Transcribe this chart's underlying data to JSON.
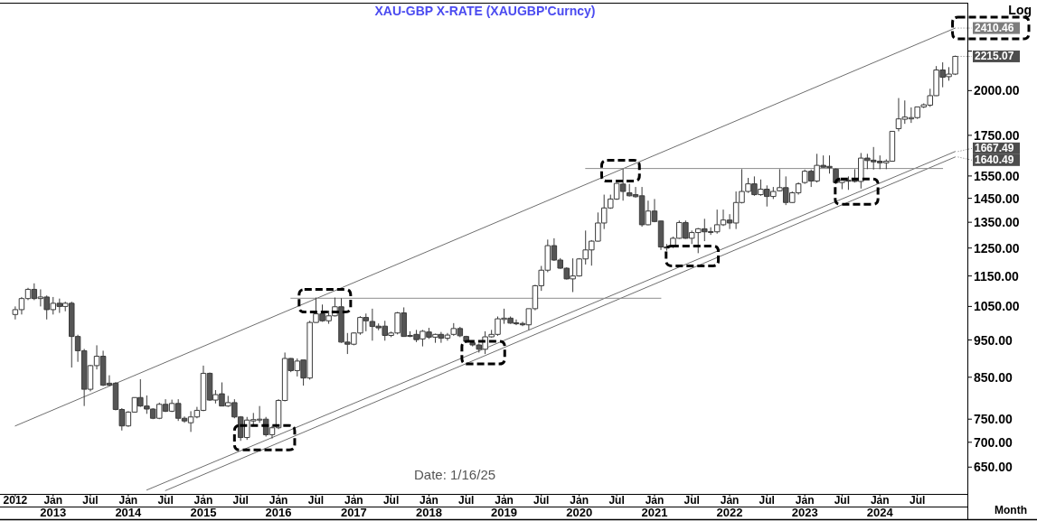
{
  "chart_data": {
    "type": "candlestick",
    "title": "XAU-GBP X-RATE (XAUGBP'Curncy)",
    "x": [
      "2012-07",
      "2012-08",
      "2012-09",
      "2012-10",
      "2012-11",
      "2012-12",
      "2013-01",
      "2013-02",
      "2013-03",
      "2013-04",
      "2013-05",
      "2013-06",
      "2013-07",
      "2013-08",
      "2013-09",
      "2013-10",
      "2013-11",
      "2013-12",
      "2014-01",
      "2014-02",
      "2014-03",
      "2014-04",
      "2014-05",
      "2014-06",
      "2014-07",
      "2014-08",
      "2014-09",
      "2014-10",
      "2014-11",
      "2014-12",
      "2015-01",
      "2015-02",
      "2015-03",
      "2015-04",
      "2015-05",
      "2015-06",
      "2015-07",
      "2015-08",
      "2015-09",
      "2015-10",
      "2015-11",
      "2015-12",
      "2016-01",
      "2016-02",
      "2016-03",
      "2016-04",
      "2016-05",
      "2016-06",
      "2016-07",
      "2016-08",
      "2016-09",
      "2016-10",
      "2016-11",
      "2016-12",
      "2017-01",
      "2017-02",
      "2017-03",
      "2017-04",
      "2017-05",
      "2017-06",
      "2017-07",
      "2017-08",
      "2017-09",
      "2017-10",
      "2017-11",
      "2017-12",
      "2018-01",
      "2018-02",
      "2018-03",
      "2018-04",
      "2018-05",
      "2018-06",
      "2018-07",
      "2018-08",
      "2018-09",
      "2018-10",
      "2018-11",
      "2018-12",
      "2019-01",
      "2019-02",
      "2019-03",
      "2019-04",
      "2019-05",
      "2019-06",
      "2019-07",
      "2019-08",
      "2019-09",
      "2019-10",
      "2019-11",
      "2019-12",
      "2020-01",
      "2020-02",
      "2020-03",
      "2020-04",
      "2020-05",
      "2020-06",
      "2020-07",
      "2020-08",
      "2020-09",
      "2020-10",
      "2020-11",
      "2020-12",
      "2021-01",
      "2021-02",
      "2021-03",
      "2021-04",
      "2021-05",
      "2021-06",
      "2021-07",
      "2021-08",
      "2021-09",
      "2021-10",
      "2021-11",
      "2021-12",
      "2022-01",
      "2022-02",
      "2022-03",
      "2022-04",
      "2022-05",
      "2022-06",
      "2022-07",
      "2022-08",
      "2022-09",
      "2022-10",
      "2022-11",
      "2022-12",
      "2023-01",
      "2023-02",
      "2023-03",
      "2023-04",
      "2023-05",
      "2023-06",
      "2023-07",
      "2023-08",
      "2023-09",
      "2023-10",
      "2023-11",
      "2023-12",
      "2024-01",
      "2024-02",
      "2024-03",
      "2024-04",
      "2024-05",
      "2024-06",
      "2024-07",
      "2024-08",
      "2024-09",
      "2024-10",
      "2024-11",
      "2024-12",
      "2025-01"
    ],
    "ohlc": [
      [
        1025,
        1050,
        1010,
        1040
      ],
      [
        1040,
        1080,
        1025,
        1075
      ],
      [
        1075,
        1110,
        1070,
        1105
      ],
      [
        1105,
        1125,
        1070,
        1075
      ],
      [
        1075,
        1105,
        1050,
        1080
      ],
      [
        1080,
        1085,
        1010,
        1040
      ],
      [
        1040,
        1080,
        1025,
        1060
      ],
      [
        1060,
        1075,
        1030,
        1050
      ],
      [
        1050,
        1065,
        1035,
        1060
      ],
      [
        1060,
        1065,
        875,
        960
      ],
      [
        960,
        965,
        890,
        920
      ],
      [
        920,
        925,
        780,
        820
      ],
      [
        820,
        882,
        815,
        880
      ],
      [
        880,
        935,
        870,
        905
      ],
      [
        905,
        920,
        828,
        830
      ],
      [
        835,
        855,
        828,
        830
      ],
      [
        835,
        838,
        770,
        772
      ],
      [
        772,
        775,
        725,
        735
      ],
      [
        735,
        768,
        733,
        766
      ],
      [
        766,
        800,
        765,
        800
      ],
      [
        800,
        845,
        778,
        780
      ],
      [
        780,
        805,
        762,
        773
      ],
      [
        773,
        775,
        750,
        752
      ],
      [
        752,
        788,
        750,
        784
      ],
      [
        784,
        796,
        766,
        768
      ],
      [
        768,
        795,
        766,
        786
      ],
      [
        786,
        796,
        746,
        752
      ],
      [
        752,
        756,
        742,
        746
      ],
      [
        742,
        768,
        722,
        755
      ],
      [
        755,
        778,
        752,
        770
      ],
      [
        770,
        880,
        768,
        860
      ],
      [
        860,
        862,
        792,
        794
      ],
      [
        794,
        818,
        786,
        807
      ],
      [
        809,
        837,
        780,
        780
      ],
      [
        780,
        804,
        778,
        788
      ],
      [
        788,
        796,
        752,
        755
      ],
      [
        755,
        757,
        703,
        710
      ],
      [
        710,
        755,
        705,
        748
      ],
      [
        746,
        764,
        738,
        749
      ],
      [
        748,
        780,
        742,
        750
      ],
      [
        750,
        755,
        712,
        716
      ],
      [
        716,
        735,
        708,
        731
      ],
      [
        731,
        796,
        728,
        793
      ],
      [
        793,
        915,
        791,
        899
      ],
      [
        899,
        900,
        863,
        867
      ],
      [
        867,
        899,
        852,
        892
      ],
      [
        895,
        895,
        829,
        848
      ],
      [
        848,
        1006,
        844,
        1001
      ],
      [
        1001,
        1078,
        1000,
        1027
      ],
      [
        1027,
        1056,
        1003,
        1006
      ],
      [
        1006,
        1037,
        997,
        1021
      ],
      [
        1021,
        1078,
        1019,
        1049
      ],
      [
        1049,
        1076,
        942,
        944
      ],
      [
        944,
        970,
        911,
        938
      ],
      [
        938,
        972,
        935,
        970
      ],
      [
        970,
        1020,
        965,
        1016
      ],
      [
        1016,
        1028,
        975,
        1006
      ],
      [
        1004,
        1043,
        948,
        989
      ],
      [
        990,
        998,
        978,
        985
      ],
      [
        990,
        1006,
        948,
        963
      ],
      [
        963,
        974,
        958,
        970
      ],
      [
        970,
        1033,
        966,
        1030
      ],
      [
        1030,
        1047,
        959,
        960
      ],
      [
        963,
        975,
        958,
        962
      ],
      [
        966,
        979,
        944,
        951
      ],
      [
        953,
        979,
        932,
        975
      ],
      [
        973,
        985,
        953,
        958
      ],
      [
        958,
        968,
        942,
        966
      ],
      [
        966,
        973,
        942,
        955
      ],
      [
        955,
        970,
        948,
        964
      ],
      [
        966,
        999,
        962,
        983
      ],
      [
        983,
        988,
        958,
        962
      ],
      [
        960,
        962,
        944,
        946
      ],
      [
        942,
        947,
        932,
        936
      ],
      [
        936,
        940,
        915,
        924
      ],
      [
        924,
        975,
        911,
        959
      ],
      [
        959,
        979,
        957,
        966
      ],
      [
        966,
        1019,
        962,
        1012
      ],
      [
        1010,
        1043,
        997,
        1014
      ],
      [
        1014,
        1019,
        997,
        999
      ],
      [
        1000,
        1010,
        993,
        997
      ],
      [
        998,
        1003,
        990,
        994
      ],
      [
        994,
        1043,
        979,
        1043
      ],
      [
        1043,
        1120,
        1038,
        1117
      ],
      [
        1117,
        1185,
        1100,
        1170
      ],
      [
        1170,
        1282,
        1163,
        1259
      ],
      [
        1259,
        1287,
        1203,
        1206
      ],
      [
        1206,
        1213,
        1175,
        1177
      ],
      [
        1177,
        1180,
        1138,
        1140
      ],
      [
        1140,
        1212,
        1096,
        1150
      ],
      [
        1150,
        1213,
        1148,
        1210
      ],
      [
        1210,
        1317,
        1190,
        1243
      ],
      [
        1243,
        1280,
        1186,
        1276
      ],
      [
        1276,
        1390,
        1274,
        1347
      ],
      [
        1347,
        1466,
        1323,
        1409
      ],
      [
        1409,
        1466,
        1405,
        1447
      ],
      [
        1447,
        1518,
        1443,
        1516
      ],
      [
        1513,
        1585,
        1440,
        1480
      ],
      [
        1474,
        1514,
        1458,
        1461
      ],
      [
        1466,
        1500,
        1453,
        1457
      ],
      [
        1461,
        1500,
        1332,
        1340
      ],
      [
        1340,
        1440,
        1338,
        1396
      ],
      [
        1396,
        1447,
        1350,
        1353
      ],
      [
        1355,
        1356,
        1243,
        1254
      ],
      [
        1254,
        1265,
        1240,
        1250
      ],
      [
        1254,
        1293,
        1250,
        1287
      ],
      [
        1287,
        1357,
        1285,
        1349
      ],
      [
        1349,
        1357,
        1285,
        1287
      ],
      [
        1287,
        1317,
        1265,
        1309
      ],
      [
        1309,
        1327,
        1231,
        1324
      ],
      [
        1324,
        1364,
        1276,
        1312
      ],
      [
        1312,
        1330,
        1300,
        1313
      ],
      [
        1312,
        1402,
        1305,
        1340
      ],
      [
        1340,
        1402,
        1335,
        1359
      ],
      [
        1359,
        1383,
        1323,
        1347
      ],
      [
        1347,
        1480,
        1323,
        1432
      ],
      [
        1432,
        1582,
        1428,
        1480
      ],
      [
        1480,
        1541,
        1474,
        1514
      ],
      [
        1514,
        1548,
        1461,
        1466
      ],
      [
        1466,
        1534,
        1461,
        1490
      ],
      [
        1490,
        1507,
        1415,
        1458
      ],
      [
        1458,
        1500,
        1447,
        1480
      ],
      [
        1483,
        1582,
        1480,
        1497
      ],
      [
        1497,
        1548,
        1421,
        1432
      ],
      [
        1432,
        1480,
        1430,
        1474
      ],
      [
        1474,
        1521,
        1466,
        1514
      ],
      [
        1520,
        1580,
        1514,
        1572
      ],
      [
        1572,
        1580,
        1500,
        1527
      ],
      [
        1527,
        1656,
        1520,
        1600
      ],
      [
        1600,
        1648,
        1589,
        1591
      ],
      [
        1595,
        1648,
        1561,
        1589
      ],
      [
        1582,
        1585,
        1514,
        1520
      ],
      [
        1520,
        1541,
        1490,
        1530
      ],
      [
        1530,
        1548,
        1487,
        1528
      ],
      [
        1534,
        1582,
        1520,
        1525
      ],
      [
        1525,
        1660,
        1493,
        1635
      ],
      [
        1635,
        1656,
        1582,
        1623
      ],
      [
        1625,
        1690,
        1580,
        1617
      ],
      [
        1620,
        1648,
        1582,
        1612
      ],
      [
        1612,
        1629,
        1582,
        1620
      ],
      [
        1620,
        1771,
        1618,
        1771
      ],
      [
        1785,
        1956,
        1771,
        1838
      ],
      [
        1836,
        1942,
        1811,
        1848
      ],
      [
        1838,
        1902,
        1816,
        1845
      ],
      [
        1845,
        1905,
        1838,
        1905
      ],
      [
        1905,
        1925,
        1898,
        1917
      ],
      [
        1915,
        2011,
        1905,
        1970
      ],
      [
        1970,
        2152,
        1968,
        2127
      ],
      [
        2127,
        2176,
        2020,
        2081
      ],
      [
        2085,
        2145,
        2060,
        2101
      ],
      [
        2101,
        2220,
        2095,
        2215.07
      ]
    ],
    "series": [
      {
        "type": "line",
        "x": [
          "2012-07",
          "2025-01"
        ],
        "values": [
          735,
          2410.46
        ],
        "color": "#6e6e6e"
      },
      {
        "type": "line",
        "x": [
          "2014-04",
          "2025-01"
        ],
        "values": [
          607,
          1667.49
        ],
        "color": "#6e6e6e"
      },
      {
        "type": "line",
        "x": [
          "2014-07",
          "2025-01"
        ],
        "values": [
          606,
          1640.49
        ],
        "color": "#6e6e6e"
      },
      {
        "type": "line",
        "x": [
          "2016-03",
          "2021-02"
        ],
        "values": [
          1076,
          1076
        ],
        "color": "#8c8c8c"
      },
      {
        "type": "line",
        "x": [
          "2020-02",
          "2024-11"
        ],
        "values": [
          1585,
          1585
        ],
        "color": "#8c8c8c"
      }
    ],
    "xlim": [
      "2012-05",
      "2025-03"
    ],
    "xticks": [
      {
        "value": "2012-07",
        "label": "2012"
      },
      {
        "value": "2013-01",
        "label": "Jan\n2013"
      },
      {
        "value": "2013-07",
        "label": "Jul"
      },
      {
        "value": "2014-01",
        "label": "Jan\n2014"
      },
      {
        "value": "2014-07",
        "label": "Jul"
      },
      {
        "value": "2015-01",
        "label": "Jan\n2015"
      },
      {
        "value": "2015-07",
        "label": "Jul"
      },
      {
        "value": "2016-01",
        "label": "Jan\n2016"
      },
      {
        "value": "2016-07",
        "label": "Jul"
      },
      {
        "value": "2017-01",
        "label": "Jan\n2017"
      },
      {
        "value": "2017-07",
        "label": "Jul"
      },
      {
        "value": "2018-01",
        "label": "Jan\n2018"
      },
      {
        "value": "2018-07",
        "label": "Jul"
      },
      {
        "value": "2019-01",
        "label": "Jan\n2019"
      },
      {
        "value": "2019-07",
        "label": "Jul"
      },
      {
        "value": "2020-01",
        "label": "Jan\n2020"
      },
      {
        "value": "2020-07",
        "label": "Jul"
      },
      {
        "value": "2021-01",
        "label": "Jan\n2021"
      },
      {
        "value": "2021-07",
        "label": "Jul"
      },
      {
        "value": "2022-01",
        "label": "Jan\n2022"
      },
      {
        "value": "2022-07",
        "label": "Jul"
      },
      {
        "value": "2023-01",
        "label": "Jan\n2023"
      },
      {
        "value": "2023-07",
        "label": "Jul"
      },
      {
        "value": "2024-01",
        "label": "Jan\n2024"
      },
      {
        "value": "2024-07",
        "label": "Jul"
      }
    ],
    "ylim": [
      600,
      2600
    ],
    "yticks": [
      {
        "value": 650,
        "label": "650.00"
      },
      {
        "value": 700,
        "label": "700.00"
      },
      {
        "value": 750,
        "label": "750.00"
      },
      {
        "value": 850,
        "label": "850.00"
      },
      {
        "value": 950,
        "label": "950.00"
      },
      {
        "value": 1050,
        "label": "1050.00"
      },
      {
        "value": 1150,
        "label": "1150.00"
      },
      {
        "value": 1250,
        "label": "1250.00"
      },
      {
        "value": 1350,
        "label": "1350.00"
      },
      {
        "value": 1450,
        "label": "1450.00"
      },
      {
        "value": 1550,
        "label": "1550.00"
      },
      {
        "value": 1750,
        "label": "1750.00"
      },
      {
        "value": 2000,
        "label": "2000.00"
      },
      {
        "value": 2250,
        "label": null
      }
    ],
    "log": true,
    "annotations": [
      "Log",
      "Month",
      "Date: 1/16/25",
      {
        "text": "2410.46",
        "x": "2025-01",
        "y": 2410.46
      },
      {
        "text": "2215.07",
        "x": "2025-01",
        "y": 2215.07
      },
      {
        "text": "1667.49",
        "x": "2025-01",
        "y": 1667.49
      },
      {
        "text": "1640.49",
        "x": "2025-01",
        "y": 1640.49
      }
    ]
  }
}
